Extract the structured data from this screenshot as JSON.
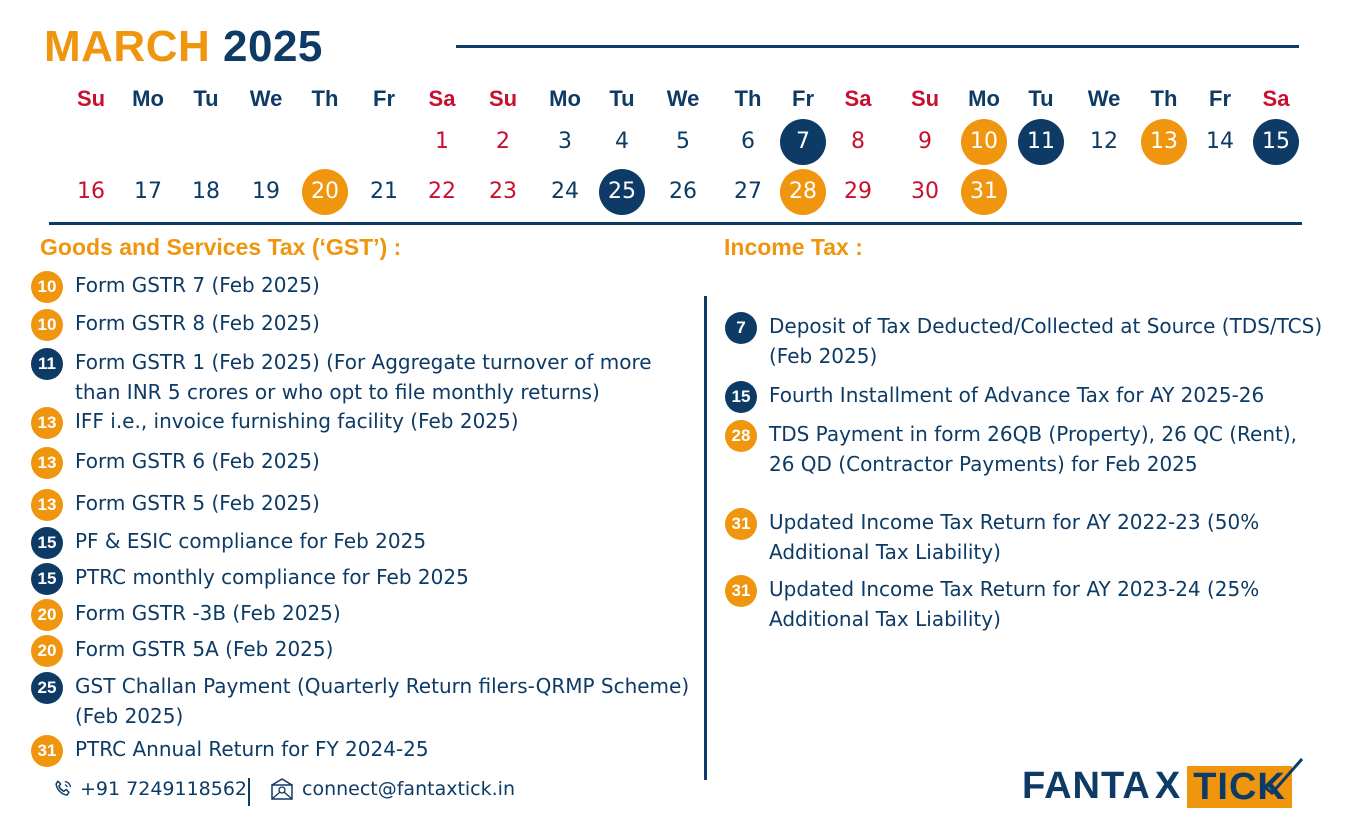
{
  "header": {
    "month": "MARCH",
    "year": "2025"
  },
  "calendar": {
    "days": [
      "Su",
      "Mo",
      "Tu",
      "We",
      "Th",
      "Fr",
      "Sa",
      "Su",
      "Mo",
      "Tu",
      "We",
      "Th",
      "Fr",
      "Sa",
      "Su",
      "Mo",
      "Tu",
      "We",
      "Th",
      "Fr",
      "Sa"
    ],
    "row1": [
      "1",
      "2",
      "3",
      "4",
      "5",
      "6",
      "7",
      "8",
      "9",
      "10",
      "11",
      "12",
      "13",
      "14",
      "15"
    ],
    "row2": [
      "16",
      "17",
      "18",
      "19",
      "20",
      "21",
      "22",
      "23",
      "24",
      "25",
      "26",
      "27",
      "28",
      "29",
      "30",
      "31"
    ],
    "colors": {
      "navy": "#0d3b66",
      "orange": "#f0950e",
      "red": "#c8102e"
    }
  },
  "gst": {
    "title": "Goods and Services Tax (‘GST’) :",
    "items": [
      {
        "day": "10",
        "text": "Form GSTR 7 (Feb 2025)"
      },
      {
        "day": "10",
        "text": "Form GSTR 8 (Feb 2025)"
      },
      {
        "day": "11",
        "text": "Form GSTR 1 (Feb 2025) (For Aggregate turnover of more than INR 5 crores or who opt to file monthly returns)"
      },
      {
        "day": "13",
        "text": "IFF i.e., invoice furnishing facility (Feb 2025)"
      },
      {
        "day": "13",
        "text": "Form GSTR 6 (Feb 2025)"
      },
      {
        "day": "13",
        "text": "Form GSTR 5 (Feb 2025)"
      },
      {
        "day": "15",
        "text": "PF & ESIC compliance for Feb 2025"
      },
      {
        "day": "15",
        "text": "PTRC monthly compliance for Feb 2025"
      },
      {
        "day": "20",
        "text": "Form GSTR -3B (Feb 2025)"
      },
      {
        "day": "20",
        "text": "Form GSTR 5A (Feb 2025)"
      },
      {
        "day": "25",
        "text": "GST Challan Payment (Quarterly Return filers-QRMP Scheme) (Feb 2025)"
      },
      {
        "day": "31",
        "text": "PTRC Annual Return for FY 2024-25"
      }
    ]
  },
  "income_tax": {
    "title": "Income Tax :",
    "items": [
      {
        "day": "7",
        "text": "Deposit of Tax Deducted/Collected at Source (TDS/TCS) (Feb 2025)"
      },
      {
        "day": "15",
        "text": "Fourth Installment of Advance Tax for AY 2025-26"
      },
      {
        "day": "28",
        "text": "TDS Payment in form 26QB (Property), 26 QC (Rent), 26 QD (Contractor Payments) for Feb 2025"
      },
      {
        "day": "31",
        "text": "Updated Income Tax Return for AY 2022-23 (50% Additional Tax Liability)"
      },
      {
        "day": "31",
        "text": "Updated Income Tax Return for AY 2023-24 (25% Additional Tax Liability)"
      }
    ]
  },
  "footer": {
    "phone": "+91 7249118562",
    "email": "connect@fantaxtick.in",
    "phone_icon": "phone-icon",
    "email_icon": "email-icon"
  },
  "logo": {
    "part1": "FANTA",
    "part2": "X",
    "part3": "TICK"
  }
}
